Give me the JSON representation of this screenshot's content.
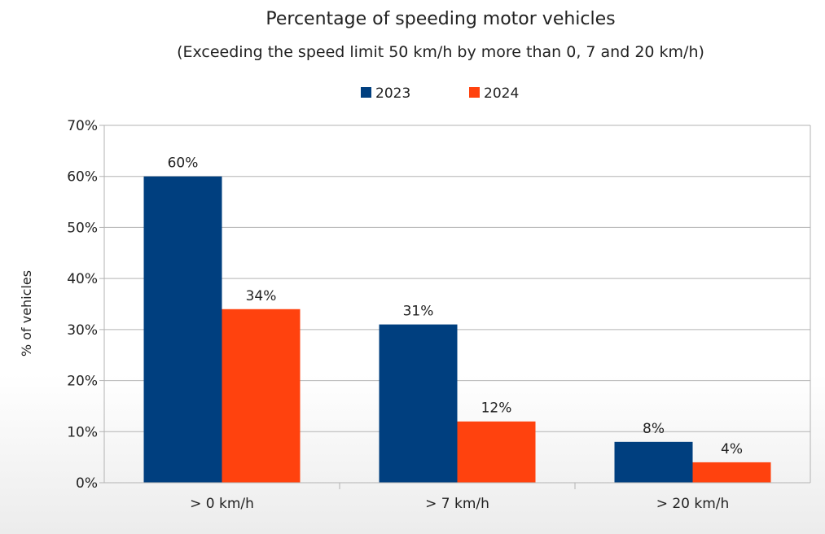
{
  "chart_data": {
    "type": "bar",
    "title": "Percentage of speeding motor vehicles",
    "subtitle": "(Exceeding the speed limit 50 km/h by more than 0, 7 and 20 km/h)",
    "xlabel": "",
    "ylabel": "% of vehicles",
    "categories": [
      "> 0 km/h",
      "> 7 km/h",
      "> 20 km/h"
    ],
    "series": [
      {
        "name": "2023",
        "values": [
          60,
          31,
          8
        ],
        "color": "#003f7f"
      },
      {
        "name": "2024",
        "values": [
          34,
          12,
          4
        ],
        "color": "#ff420e"
      }
    ],
    "ylim": [
      0,
      70
    ],
    "yticks": [
      0,
      10,
      20,
      30,
      40,
      50,
      60,
      70
    ],
    "tick_suffix": "%",
    "grid": true,
    "legend_position": "top-center",
    "data_labels": [
      [
        "60%",
        "31%",
        "8%"
      ],
      [
        "34%",
        "12%",
        "4%"
      ]
    ]
  }
}
